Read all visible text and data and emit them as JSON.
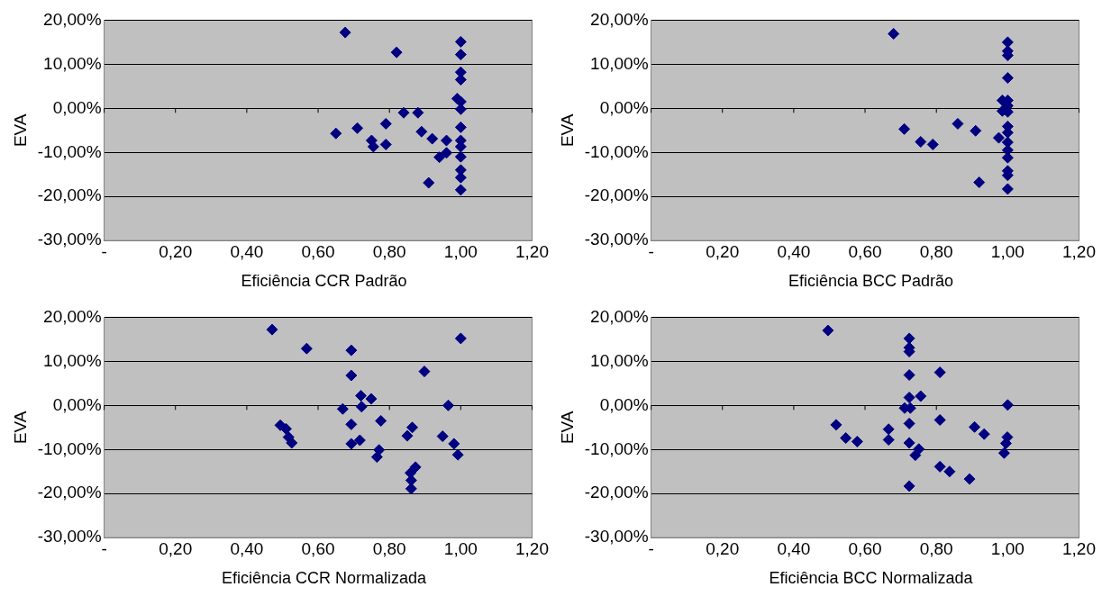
{
  "chart_data": [
    {
      "type": "scatter",
      "xlabel": "Eficiência CCR Padrão",
      "ylabel": "EVA",
      "color": "#000080",
      "marker": "diamond",
      "grid": "y",
      "legend": false,
      "x": [
        0.676,
        0.82,
        1.0,
        1.0,
        1.0,
        1.0,
        0.99,
        1.0,
        1.0,
        1.0,
        1.0,
        1.0,
        1.0,
        1.0,
        1.0,
        1.0,
        0.84,
        0.88,
        0.65,
        0.71,
        0.79,
        0.75,
        0.755,
        0.79,
        0.89,
        0.92,
        0.96,
        0.94,
        0.96,
        0.91
      ],
      "values": [
        17.2,
        12.7,
        15.1,
        12.2,
        8.2,
        6.5,
        2.2,
        1.5,
        -0.2,
        -4.3,
        -8.7,
        -11,
        -14,
        -15.7,
        -18.5,
        -7.3,
        -1,
        -1,
        -5.7,
        -4.5,
        -3.5,
        -7.3,
        -8.7,
        -8.2,
        -5.3,
        -6.9,
        -7.3,
        -11.1,
        -10.1,
        -16.9
      ],
      "xlim": [
        0,
        1.2
      ],
      "xticks": [
        {
          "value": 0,
          "label": "-"
        },
        {
          "value": 0.2,
          "label": "0,20"
        },
        {
          "value": 0.4,
          "label": "0,40"
        },
        {
          "value": 0.6,
          "label": "0,60"
        },
        {
          "value": 0.8,
          "label": "0,80"
        },
        {
          "value": 1.0,
          "label": "1,00"
        },
        {
          "value": 1.2,
          "label": "1,20"
        }
      ],
      "ylim": [
        -30,
        20
      ],
      "yticks": [
        {
          "value": -30,
          "label": "-30,00%"
        },
        {
          "value": -20,
          "label": "-20,00%"
        },
        {
          "value": -10,
          "label": "-10,00%"
        },
        {
          "value": 0,
          "label": "0,00%"
        },
        {
          "value": 10,
          "label": "10,00%"
        },
        {
          "value": 20,
          "label": "20,00%"
        }
      ]
    },
    {
      "type": "scatter",
      "xlabel": "Eficiência BCC Padrão",
      "ylabel": "EVA",
      "color": "#000080",
      "marker": "diamond",
      "grid": "y",
      "legend": false,
      "x": [
        0.68,
        0.71,
        0.756,
        0.79,
        0.86,
        0.91,
        0.92,
        0.975,
        0.985,
        0.985,
        1.0,
        1.0,
        1.0,
        1.0,
        1.0,
        1.0,
        1.0,
        1.0,
        1.0,
        1.0,
        1.0,
        1.0,
        1.0,
        1.0,
        1.0
      ],
      "values": [
        16.9,
        -4.7,
        -7.6,
        -8.2,
        -3.5,
        -5.1,
        -16.8,
        -6.7,
        -0.6,
        1.8,
        15,
        13,
        12,
        6.9,
        1.8,
        0.6,
        -0.8,
        -4.1,
        -5.5,
        -7.7,
        -9.5,
        -11.2,
        -14.2,
        -15.2,
        -18.3
      ],
      "xlim": [
        0,
        1.2
      ],
      "xticks": [
        {
          "value": 0,
          "label": "-"
        },
        {
          "value": 0.2,
          "label": "0,20"
        },
        {
          "value": 0.4,
          "label": "0,40"
        },
        {
          "value": 0.6,
          "label": "0,60"
        },
        {
          "value": 0.8,
          "label": "0,80"
        },
        {
          "value": 1.0,
          "label": "1,00"
        },
        {
          "value": 1.2,
          "label": "1,20"
        }
      ],
      "ylim": [
        -30,
        20
      ],
      "yticks": [
        {
          "value": -30,
          "label": "-30,00%"
        },
        {
          "value": -20,
          "label": "-20,00%"
        },
        {
          "value": -10,
          "label": "-10,00%"
        },
        {
          "value": 0,
          "label": "0,00%"
        },
        {
          "value": 10,
          "label": "10,00%"
        },
        {
          "value": 20,
          "label": "20,00%"
        }
      ]
    },
    {
      "type": "scatter",
      "xlabel": "Eficiência CCR Normalizada",
      "ylabel": "EVA",
      "color": "#000080",
      "marker": "diamond",
      "grid": "y",
      "legend": false,
      "x": [
        0.471,
        0.568,
        0.693,
        1.0,
        0.693,
        0.898,
        0.72,
        0.749,
        0.669,
        0.722,
        0.965,
        0.494,
        0.51,
        0.517,
        0.526,
        0.693,
        0.693,
        0.717,
        0.776,
        0.771,
        0.765,
        0.864,
        0.85,
        0.949,
        0.981,
        0.992,
        0.873,
        0.859,
        0.861,
        0.861
      ],
      "values": [
        17.2,
        12.9,
        12.5,
        15.2,
        6.8,
        7.7,
        2.2,
        1.5,
        -0.8,
        -0.3,
        0,
        -4.5,
        -5.3,
        -7.2,
        -8.5,
        -4.3,
        -8.7,
        -7.9,
        -3.5,
        -10.1,
        -11.7,
        -5,
        -6.9,
        -7,
        -8.7,
        -11.2,
        -14,
        -15.3,
        -17,
        -18.9
      ],
      "xlim": [
        0,
        1.2
      ],
      "xticks": [
        {
          "value": 0,
          "label": "-"
        },
        {
          "value": 0.2,
          "label": "0,20"
        },
        {
          "value": 0.4,
          "label": "0,40"
        },
        {
          "value": 0.6,
          "label": "0,60"
        },
        {
          "value": 0.8,
          "label": "0,80"
        },
        {
          "value": 1.0,
          "label": "1,00"
        },
        {
          "value": 1.2,
          "label": "1,20"
        }
      ],
      "ylim": [
        -30,
        20
      ],
      "yticks": [
        {
          "value": -30,
          "label": "-30,00%"
        },
        {
          "value": -20,
          "label": "-20,00%"
        },
        {
          "value": -10,
          "label": "-10,00%"
        },
        {
          "value": 0,
          "label": "0,00%"
        },
        {
          "value": 10,
          "label": "10,00%"
        },
        {
          "value": 20,
          "label": "20,00%"
        }
      ]
    },
    {
      "type": "scatter",
      "xlabel": "Eficiência BCC Normalizada",
      "ylabel": "EVA",
      "color": "#000080",
      "marker": "diamond",
      "grid": "y",
      "legend": false,
      "x": [
        0.496,
        0.724,
        0.724,
        0.724,
        0.81,
        0.724,
        0.724,
        0.756,
        0.711,
        0.727,
        1.0,
        0.519,
        0.546,
        0.578,
        0.666,
        0.666,
        0.724,
        0.724,
        0.751,
        0.741,
        0.81,
        0.81,
        0.837,
        0.893,
        0.907,
        0.934,
        0.999,
        0.995,
        0.99,
        0.724
      ],
      "values": [
        17,
        15.2,
        13.1,
        12.2,
        7.5,
        6.9,
        1.8,
        2.1,
        -0.6,
        -0.6,
        0.1,
        -4.4,
        -7.4,
        -8.2,
        -5.4,
        -7.8,
        -4.1,
        -8.5,
        -9.9,
        -11.3,
        -3.3,
        -13.9,
        -15,
        -16.7,
        -4.9,
        -6.5,
        -7.2,
        -8.6,
        -10.8,
        -18.3
      ],
      "xlim": [
        0,
        1.2
      ],
      "xticks": [
        {
          "value": 0,
          "label": "-"
        },
        {
          "value": 0.2,
          "label": "0,20"
        },
        {
          "value": 0.4,
          "label": "0,40"
        },
        {
          "value": 0.6,
          "label": "0,60"
        },
        {
          "value": 0.8,
          "label": "0,80"
        },
        {
          "value": 1.0,
          "label": "1,00"
        },
        {
          "value": 1.2,
          "label": "1,20"
        }
      ],
      "ylim": [
        -30,
        20
      ],
      "yticks": [
        {
          "value": -30,
          "label": "-30,00%"
        },
        {
          "value": -20,
          "label": "-20,00%"
        },
        {
          "value": -10,
          "label": "-10,00%"
        },
        {
          "value": 0,
          "label": "0,00%"
        },
        {
          "value": 10,
          "label": "10,00%"
        },
        {
          "value": 20,
          "label": "20,00%"
        }
      ]
    }
  ]
}
